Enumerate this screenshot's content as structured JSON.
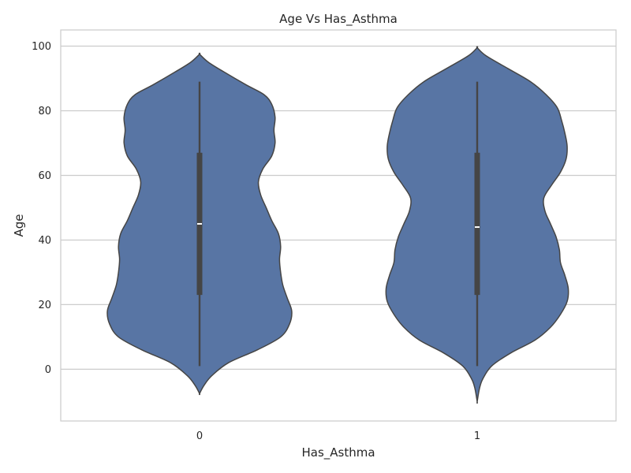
{
  "chart_data": {
    "type": "violin",
    "title": "Age Vs Has_Asthma",
    "xlabel": "Has_Asthma",
    "ylabel": "Age",
    "categories": [
      "0",
      "1"
    ],
    "ylim": [
      -16,
      105
    ],
    "yticks": [
      0,
      20,
      40,
      60,
      80,
      100
    ],
    "grid": "horizontal",
    "fill_color": "#5875A4",
    "outline_color": "#454545",
    "box_color": "#454545",
    "median_color": "#ffffff",
    "violins": [
      {
        "category": "0",
        "density": [
          [
            97.5,
            0.0
          ],
          [
            95,
            0.08
          ],
          [
            92,
            0.22
          ],
          [
            88,
            0.42
          ],
          [
            85,
            0.58
          ],
          [
            82,
            0.65
          ],
          [
            78,
            0.68
          ],
          [
            74,
            0.67
          ],
          [
            70,
            0.68
          ],
          [
            66,
            0.65
          ],
          [
            62,
            0.57
          ],
          [
            58,
            0.53
          ],
          [
            54,
            0.55
          ],
          [
            50,
            0.6
          ],
          [
            46,
            0.65
          ],
          [
            42,
            0.71
          ],
          [
            38,
            0.73
          ],
          [
            34,
            0.72
          ],
          [
            30,
            0.73
          ],
          [
            26,
            0.75
          ],
          [
            22,
            0.79
          ],
          [
            18,
            0.83
          ],
          [
            14,
            0.81
          ],
          [
            10,
            0.73
          ],
          [
            6,
            0.52
          ],
          [
            2,
            0.26
          ],
          [
            -2,
            0.11
          ],
          [
            -5,
            0.04
          ],
          [
            -7.5,
            0.0
          ]
        ],
        "whisker_low": 1,
        "q1": 23,
        "median": 45,
        "q3": 67,
        "whisker_high": 89
      },
      {
        "category": "1",
        "density": [
          [
            99.5,
            0.0
          ],
          [
            97,
            0.08
          ],
          [
            93,
            0.28
          ],
          [
            89,
            0.48
          ],
          [
            85,
            0.62
          ],
          [
            81,
            0.72
          ],
          [
            77,
            0.76
          ],
          [
            73,
            0.79
          ],
          [
            69,
            0.81
          ],
          [
            65,
            0.8
          ],
          [
            61,
            0.75
          ],
          [
            57,
            0.67
          ],
          [
            53,
            0.6
          ],
          [
            49,
            0.61
          ],
          [
            45,
            0.66
          ],
          [
            41,
            0.71
          ],
          [
            37,
            0.74
          ],
          [
            33,
            0.75
          ],
          [
            29,
            0.79
          ],
          [
            25,
            0.82
          ],
          [
            21,
            0.81
          ],
          [
            17,
            0.75
          ],
          [
            13,
            0.66
          ],
          [
            9,
            0.52
          ],
          [
            5,
            0.3
          ],
          [
            1,
            0.13
          ],
          [
            -3,
            0.05
          ],
          [
            -6,
            0.02
          ],
          [
            -10,
            0.0
          ]
        ],
        "whisker_low": 1,
        "q1": 23,
        "median": 44,
        "q3": 67,
        "whisker_high": 89
      }
    ]
  }
}
